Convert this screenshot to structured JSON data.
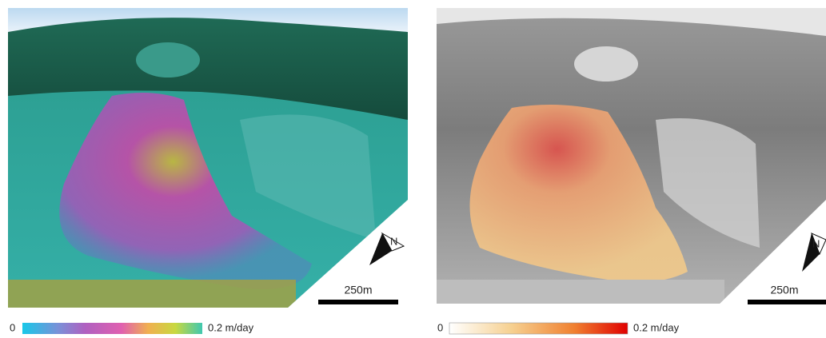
{
  "panels": [
    {
      "colorbar": {
        "min_label": "0",
        "max_label": "0.2 m/day"
      },
      "scale_bar": "250m",
      "north": "N"
    },
    {
      "colorbar": {
        "min_label": "0",
        "max_label": "0.2 m/day"
      },
      "scale_bar": "250m",
      "north": "N"
    }
  ]
}
